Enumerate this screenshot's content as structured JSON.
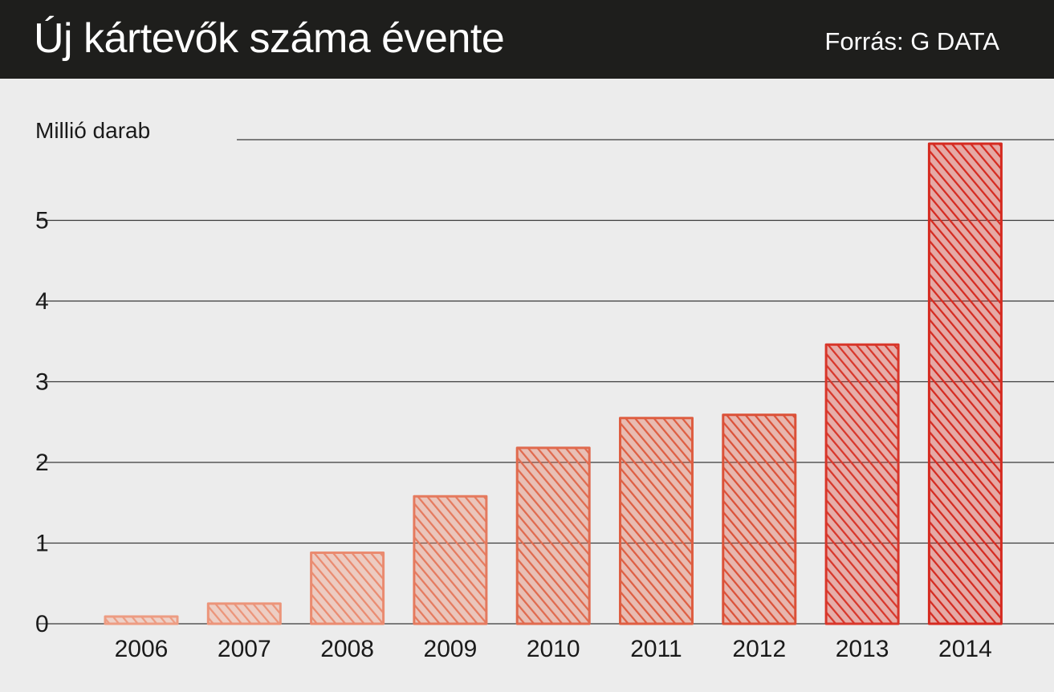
{
  "header": {
    "title": "Új kártevők száma évente",
    "source": "Forrás: G DATA"
  },
  "chart_data": {
    "type": "bar",
    "title": "Új kártevők száma évente",
    "ylabel": "Millió darab",
    "xlabel": "",
    "categories": [
      "2006",
      "2007",
      "2008",
      "2009",
      "2010",
      "2011",
      "2012",
      "2013",
      "2014"
    ],
    "values": [
      0.09,
      0.25,
      0.88,
      1.58,
      2.18,
      2.55,
      2.59,
      3.46,
      5.95
    ],
    "ylim": [
      0,
      6
    ],
    "yticks": [
      0,
      1,
      2,
      3,
      4,
      5
    ],
    "grid": true,
    "colors": [
      "#ed9c82",
      "#ec9479",
      "#ea8b70",
      "#e57a5e",
      "#e06a4e",
      "#de5e42",
      "#db5138",
      "#d8362a",
      "#d52a20"
    ]
  },
  "colors": {
    "header_bg": "#1e1e1c",
    "header_text": "#ffffff",
    "background": "#ececec",
    "gridline": "#3a3a3a"
  }
}
